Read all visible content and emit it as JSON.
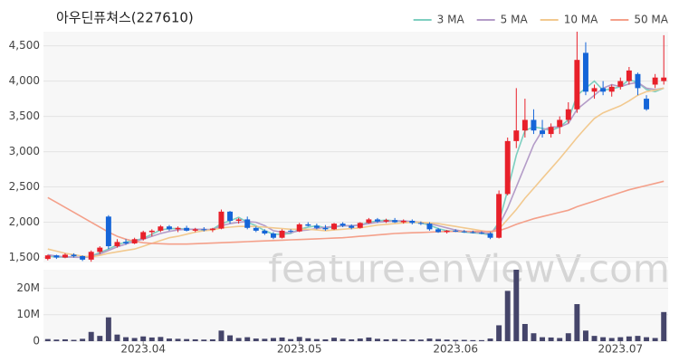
{
  "chart_data": {
    "type": "candlestick",
    "title": "아우딘퓨쳐스(227610)",
    "watermark": "feature.enViewV.com",
    "categories": [
      null,
      null,
      null,
      null,
      null,
      null,
      null,
      null,
      null,
      null,
      null,
      "2023.04",
      null,
      null,
      null,
      null,
      null,
      null,
      null,
      null,
      null,
      null,
      null,
      null,
      null,
      null,
      null,
      null,
      null,
      "2023.05",
      null,
      null,
      null,
      null,
      null,
      null,
      null,
      null,
      null,
      null,
      null,
      null,
      null,
      null,
      null,
      null,
      null,
      "2023.06",
      null,
      null,
      null,
      null,
      null,
      null,
      null,
      null,
      null,
      null,
      null,
      null,
      null,
      null,
      null,
      null,
      null,
      null,
      "2023.07",
      null,
      null,
      null,
      null,
      null
    ],
    "open": [
      1480,
      1530,
      1500,
      1540,
      1520,
      1470,
      1580,
      2080,
      1660,
      1720,
      1700,
      1760,
      1860,
      1880,
      1940,
      1900,
      1920,
      1880,
      1900,
      1890,
      1910,
      2150,
      2020,
      2040,
      1920,
      1880,
      1840,
      1780,
      1880,
      1870,
      1970,
      1950,
      1920,
      1900,
      1980,
      1950,
      1920,
      1990,
      2040,
      2010,
      2030,
      2000,
      2020,
      1990,
      1980,
      1900,
      1860,
      1880,
      1870,
      1860,
      1850,
      1840,
      1780,
      2400,
      3150,
      3300,
      3450,
      3300,
      3250,
      3350,
      3450,
      3600,
      4400,
      3850,
      3900,
      3850,
      3920,
      4000,
      4100,
      3750,
      3950,
      4000
    ],
    "high": [
      1540,
      1540,
      1560,
      1560,
      1530,
      1600,
      1660,
      2100,
      1760,
      1760,
      1780,
      1880,
      1900,
      1960,
      1960,
      1940,
      1950,
      1920,
      1930,
      1920,
      2180,
      2160,
      2060,
      2080,
      1940,
      1900,
      1860,
      1900,
      1900,
      1990,
      2000,
      1980,
      1960,
      1990,
      2000,
      1970,
      2000,
      2060,
      2060,
      2050,
      2060,
      2040,
      2040,
      2010,
      2000,
      1920,
      1890,
      1900,
      1890,
      1880,
      1870,
      1860,
      2450,
      3200,
      3900,
      3750,
      3600,
      3450,
      3400,
      3500,
      3700,
      4700,
      4550,
      3950,
      4000,
      3950,
      4050,
      4200,
      4120,
      3800,
      4100,
      4650
    ],
    "low": [
      1460,
      1480,
      1490,
      1500,
      1450,
      1440,
      1550,
      1620,
      1640,
      1680,
      1690,
      1740,
      1800,
      1860,
      1880,
      1860,
      1870,
      1860,
      1870,
      1860,
      1900,
      1980,
      1980,
      1900,
      1860,
      1820,
      1760,
      1770,
      1850,
      1860,
      1940,
      1900,
      1880,
      1890,
      1930,
      1900,
      1910,
      1980,
      1990,
      1990,
      1990,
      1980,
      1970,
      1960,
      1880,
      1850,
      1840,
      1860,
      1850,
      1840,
      1830,
      1760,
      1770,
      2380,
      3050,
      3200,
      3250,
      3200,
      3200,
      3250,
      3400,
      3550,
      3800,
      3750,
      3800,
      3780,
      3880,
      3950,
      3800,
      3580,
      3900,
      3950
    ],
    "close": [
      1530,
      1500,
      1540,
      1520,
      1470,
      1580,
      1640,
      1660,
      1720,
      1700,
      1760,
      1860,
      1880,
      1940,
      1900,
      1920,
      1880,
      1900,
      1890,
      1910,
      2150,
      2020,
      2040,
      1920,
      1880,
      1840,
      1780,
      1880,
      1870,
      1970,
      1950,
      1920,
      1900,
      1980,
      1950,
      1920,
      1990,
      2040,
      2010,
      2030,
      2000,
      2020,
      1990,
      1980,
      1900,
      1860,
      1880,
      1870,
      1860,
      1850,
      1840,
      1780,
      2400,
      3150,
      3300,
      3450,
      3300,
      3250,
      3350,
      3450,
      3600,
      4300,
      3850,
      3900,
      3850,
      3920,
      4000,
      4150,
      3900,
      3600,
      4050,
      4050
    ],
    "up_color": "#e8202a",
    "down_color": "#1565d8",
    "ylim": [
      1430,
      4700
    ],
    "yticks": [
      {
        "value": 1500,
        "label": "1,500"
      },
      {
        "value": 2000,
        "label": "2,000"
      },
      {
        "value": 2500,
        "label": "2,500"
      },
      {
        "value": 3000,
        "label": "3,000"
      },
      {
        "value": 3500,
        "label": "3,500"
      },
      {
        "value": 4000,
        "label": "4,000"
      },
      {
        "value": 4500,
        "label": "4,500"
      }
    ],
    "grid": true,
    "legend": "top-right",
    "series": [
      {
        "name": "3 MA",
        "color": "#7ecfc0",
        "values": [
          1520,
          1510,
          1505,
          1510,
          1500,
          1520,
          1570,
          1620,
          1680,
          1720,
          1740,
          1770,
          1830,
          1890,
          1910,
          1910,
          1900,
          1900,
          1890,
          1900,
          1980,
          2020,
          2070,
          2000,
          1950,
          1880,
          1830,
          1830,
          1840,
          1900,
          1930,
          1950,
          1920,
          1930,
          1950,
          1950,
          1960,
          2000,
          2020,
          2030,
          2020,
          2010,
          2000,
          1990,
          1960,
          1910,
          1880,
          1870,
          1860,
          1850,
          1840,
          1820,
          2000,
          2450,
          2950,
          3300,
          3350,
          3330,
          3300,
          3350,
          3450,
          3800,
          3900,
          4000,
          3870,
          3890,
          3920,
          4020,
          3980,
          3880,
          3850,
          3900
        ]
      },
      {
        "name": "5 MA",
        "color": "#b49cc8",
        "values": [
          1540,
          1520,
          1510,
          1505,
          1500,
          1510,
          1550,
          1600,
          1650,
          1690,
          1730,
          1760,
          1800,
          1840,
          1870,
          1890,
          1900,
          1900,
          1900,
          1890,
          1950,
          1980,
          2000,
          2010,
          2000,
          1950,
          1880,
          1860,
          1850,
          1880,
          1890,
          1910,
          1930,
          1940,
          1950,
          1950,
          1960,
          1980,
          2000,
          2010,
          2020,
          2020,
          2010,
          2000,
          1980,
          1950,
          1920,
          1890,
          1870,
          1860,
          1850,
          1840,
          1950,
          2200,
          2500,
          2800,
          3100,
          3300,
          3350,
          3350,
          3400,
          3600,
          3700,
          3800,
          3900,
          3950,
          3920,
          3960,
          3980,
          3900,
          3880,
          3900
        ]
      },
      {
        "name": "10 MA",
        "color": "#f2c98f",
        "values": [
          1620,
          1590,
          1560,
          1540,
          1520,
          1510,
          1530,
          1560,
          1580,
          1600,
          1620,
          1660,
          1700,
          1740,
          1780,
          1800,
          1830,
          1860,
          1880,
          1890,
          1920,
          1930,
          1940,
          1940,
          1940,
          1930,
          1920,
          1910,
          1900,
          1900,
          1900,
          1890,
          1880,
          1890,
          1900,
          1910,
          1920,
          1940,
          1960,
          1970,
          1980,
          1990,
          2000,
          2000,
          1990,
          1980,
          1960,
          1940,
          1920,
          1900,
          1880,
          1860,
          1900,
          2040,
          2180,
          2340,
          2480,
          2620,
          2760,
          2900,
          3050,
          3200,
          3340,
          3470,
          3550,
          3600,
          3650,
          3720,
          3800,
          3850,
          3870,
          3900
        ]
      },
      {
        "name": "50 MA",
        "color": "#f4a08a",
        "values": [
          2350,
          2280,
          2210,
          2140,
          2070,
          2000,
          1930,
          1860,
          1800,
          1760,
          1730,
          1710,
          1700,
          1695,
          1690,
          1690,
          1690,
          1695,
          1700,
          1705,
          1710,
          1715,
          1720,
          1725,
          1730,
          1735,
          1740,
          1745,
          1750,
          1755,
          1760,
          1765,
          1770,
          1775,
          1780,
          1790,
          1800,
          1810,
          1820,
          1830,
          1840,
          1845,
          1850,
          1855,
          1860,
          1865,
          1870,
          1870,
          1870,
          1870,
          1870,
          1870,
          1880,
          1920,
          1970,
          2010,
          2050,
          2080,
          2110,
          2140,
          2170,
          2220,
          2260,
          2300,
          2340,
          2380,
          2420,
          2460,
          2490,
          2520,
          2550,
          2580
        ]
      }
    ],
    "volume": {
      "color": "#45456a",
      "ylim": [
        0,
        27000000
      ],
      "yticks": [
        0,
        {
          "value": 10000000,
          "label": "10M"
        },
        {
          "value": 20000000,
          "label": "20M"
        }
      ],
      "values": [
        800000,
        600000,
        700000,
        500000,
        900000,
        3500000,
        2000000,
        9000000,
        2500000,
        1500000,
        1200000,
        1800000,
        1400000,
        1600000,
        1000000,
        900000,
        800000,
        700000,
        600000,
        700000,
        4000000,
        2200000,
        1200000,
        1500000,
        1000000,
        900000,
        1200000,
        1400000,
        800000,
        1600000,
        1100000,
        800000,
        700000,
        1300000,
        900000,
        700000,
        1000000,
        1400000,
        900000,
        700000,
        800000,
        600000,
        700000,
        600000,
        1000000,
        800000,
        600000,
        500000,
        500000,
        400000,
        400000,
        1000000,
        6000000,
        19000000,
        27000000,
        6500000,
        3000000,
        1500000,
        1400000,
        1200000,
        3000000,
        14000000,
        4000000,
        2000000,
        1500000,
        1200000,
        1500000,
        1800000,
        2000000,
        1500000,
        1200000,
        11000000
      ]
    }
  }
}
